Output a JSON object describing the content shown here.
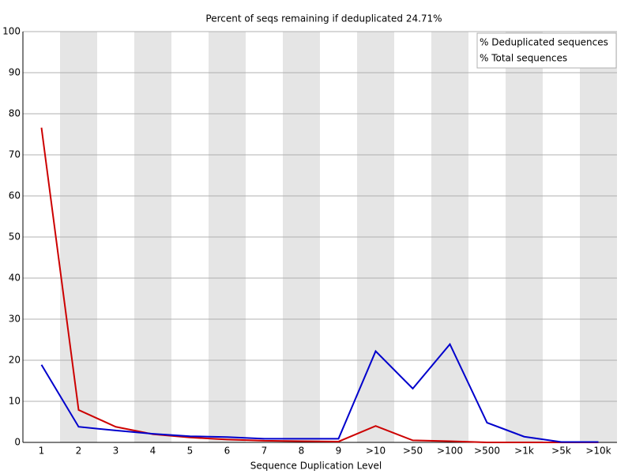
{
  "chart_data": {
    "type": "line",
    "title": "Percent of seqs remaining if deduplicated 24.71%",
    "x_label": "Sequence Duplication Level",
    "categories": [
      "1",
      "2",
      "3",
      "4",
      "5",
      "6",
      "7",
      "8",
      "9",
      ">10",
      ">50",
      ">100",
      ">500",
      ">1k",
      ">5k",
      ">10k"
    ],
    "series": [
      {
        "name": "% Deduplicated sequences",
        "color": "#cc0000",
        "values": [
          76.6,
          7.9,
          3.8,
          2.0,
          1.2,
          0.7,
          0.4,
          0.3,
          0.2,
          4.0,
          0.5,
          0.3,
          0.0,
          0.0,
          0.0,
          0.0
        ]
      },
      {
        "name": "% Total sequences",
        "color": "#0000cc",
        "values": [
          18.9,
          3.8,
          2.9,
          2.1,
          1.5,
          1.3,
          0.9,
          0.9,
          0.9,
          22.2,
          13.1,
          23.9,
          4.8,
          1.4,
          0.1,
          0.1
        ]
      }
    ],
    "ylim": [
      0,
      100
    ],
    "yticks": [
      0,
      10,
      20,
      30,
      40,
      50,
      60,
      70,
      80,
      90,
      100
    ],
    "grid": true,
    "legend": "top-right"
  }
}
